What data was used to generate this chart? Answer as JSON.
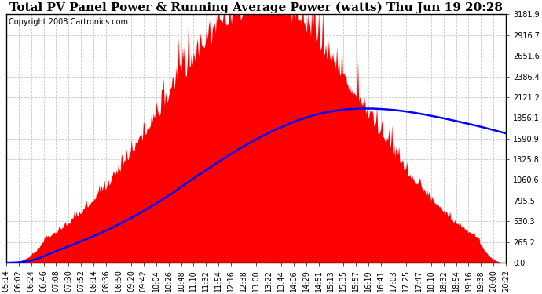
{
  "title": "Total PV Panel Power & Running Average Power (watts) Thu Jun 19 20:28",
  "copyright": "Copyright 2008 Cartronics.com",
  "y_max": 3181.9,
  "y_ticks": [
    0.0,
    265.2,
    530.3,
    795.5,
    1060.6,
    1325.8,
    1590.9,
    1856.1,
    2121.2,
    2386.4,
    2651.6,
    2916.7,
    3181.9
  ],
  "x_labels": [
    "05:14",
    "06:02",
    "06:24",
    "06:46",
    "07:08",
    "07:30",
    "07:52",
    "08:14",
    "08:36",
    "08:50",
    "09:20",
    "09:42",
    "10:04",
    "10:26",
    "10:48",
    "11:10",
    "11:32",
    "11:54",
    "12:16",
    "12:38",
    "13:00",
    "13:22",
    "13:44",
    "14:06",
    "14:29",
    "14:51",
    "15:13",
    "15:35",
    "15:57",
    "16:19",
    "16:41",
    "17:03",
    "17:25",
    "17:47",
    "18:10",
    "18:32",
    "18:54",
    "19:16",
    "19:38",
    "20:00",
    "20:22"
  ],
  "background_color": "#ffffff",
  "plot_bg_color": "#ffffff",
  "fill_color": "#ff0000",
  "line_color": "#0000ff",
  "grid_color": "#c8c8c8",
  "title_fontsize": 11,
  "copyright_fontsize": 7,
  "tick_fontsize": 7,
  "peak_power": 3181.9,
  "peak_avg": 1920.0,
  "final_avg": 1530.0
}
